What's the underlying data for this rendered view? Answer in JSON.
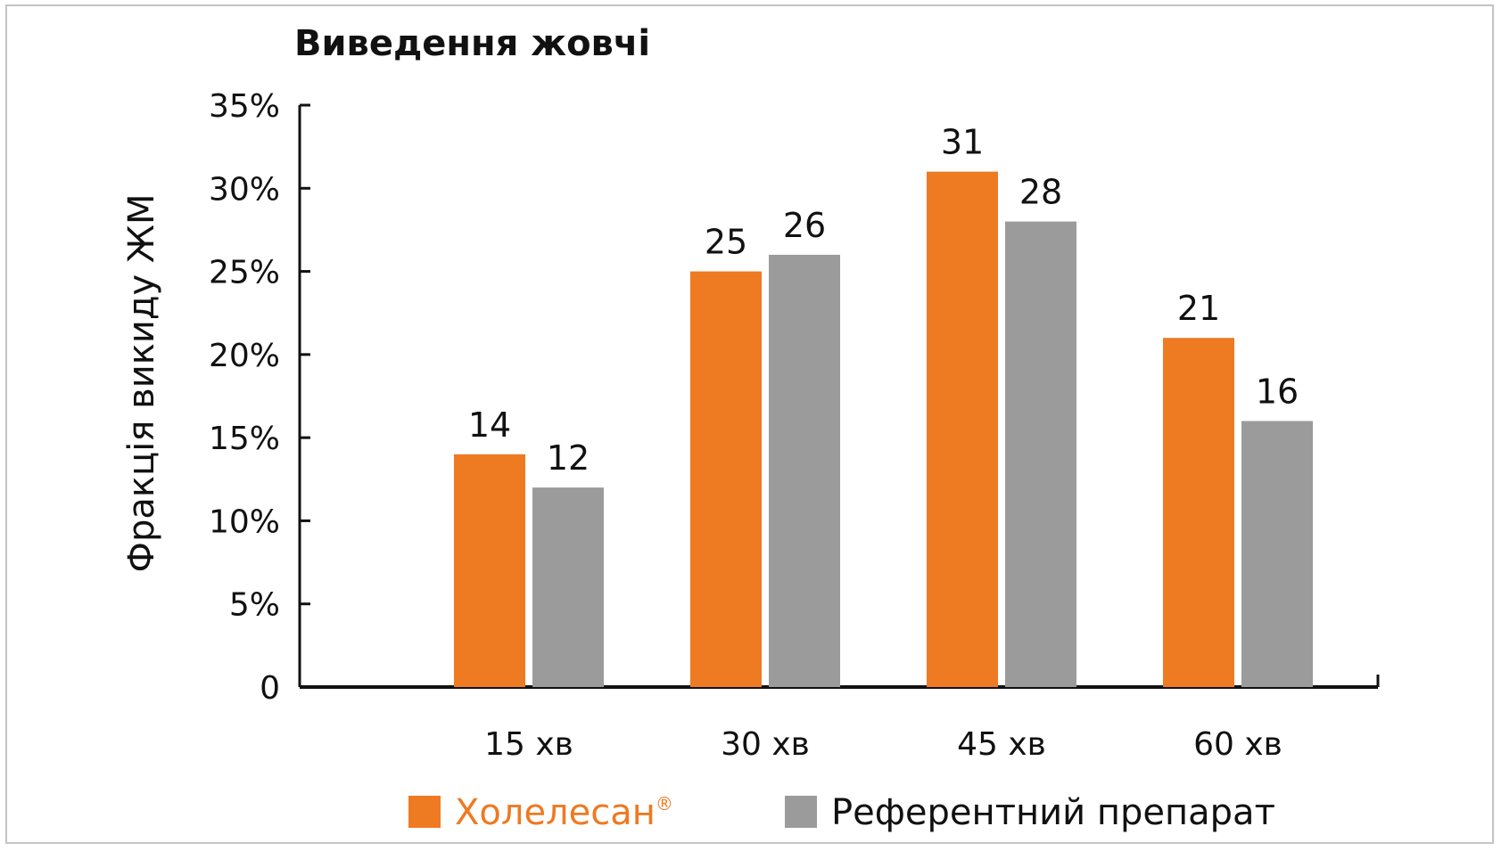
{
  "chart_data": {
    "type": "bar",
    "title": "Виведення жовчі",
    "ylabel": "Фракція викиду ЖМ",
    "xlabel": "",
    "categories": [
      "15 хв",
      "30 хв",
      "45 хв",
      "60 хв"
    ],
    "ylim": [
      0,
      35
    ],
    "yticks": [
      0,
      5,
      10,
      15,
      20,
      25,
      30,
      35
    ],
    "ytick_labels": [
      "0",
      "5%",
      "10%",
      "15%",
      "20%",
      "25%",
      "30%",
      "35%"
    ],
    "series": [
      {
        "name": "Холелесан",
        "name_sup": "®",
        "values": [
          14,
          25,
          31,
          21
        ],
        "color": "#ee7a22"
      },
      {
        "name": "Референтний препарат",
        "values": [
          12,
          26,
          28,
          16
        ],
        "color": "#9b9b9b"
      }
    ],
    "grid": false,
    "legend_position": "bottom"
  }
}
